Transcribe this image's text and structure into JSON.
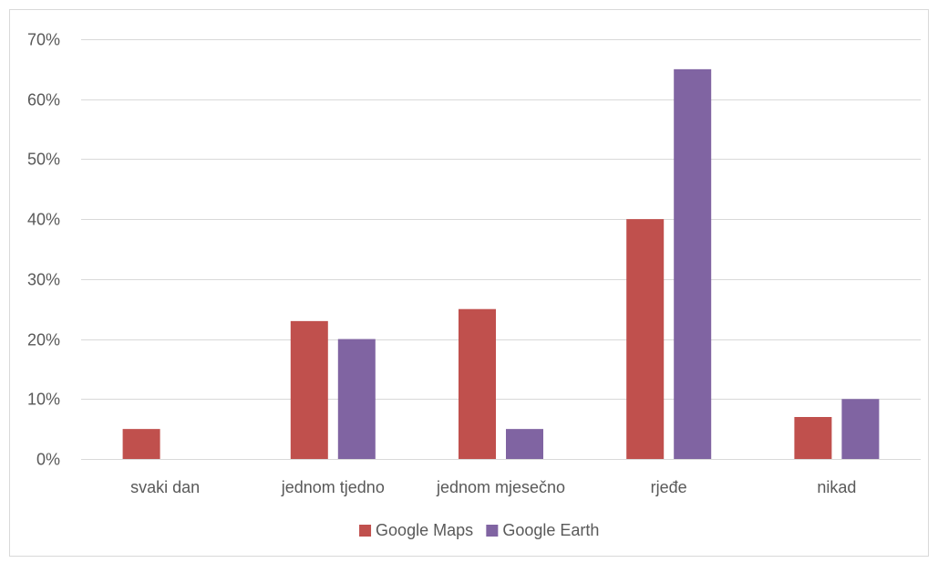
{
  "chart_data": {
    "type": "bar",
    "categories": [
      "svaki dan",
      "jednom tjedno",
      "jednom mjesečno",
      "rjeđe",
      "nikad"
    ],
    "series": [
      {
        "name": "Google Maps",
        "values": [
          5,
          23,
          25,
          40,
          7
        ],
        "color": "#c0504d"
      },
      {
        "name": "Google Earth",
        "values": [
          0,
          20,
          5,
          65,
          10
        ],
        "color": "#8064a2"
      }
    ],
    "ylim": [
      0,
      70
    ],
    "yticks": [
      0,
      10,
      20,
      30,
      40,
      50,
      60,
      70
    ],
    "ytick_labels": [
      "0%",
      "10%",
      "20%",
      "30%",
      "40%",
      "50%",
      "60%",
      "70%"
    ],
    "grid": true,
    "legend_position": "bottom",
    "title": "",
    "xlabel": "",
    "ylabel": ""
  }
}
